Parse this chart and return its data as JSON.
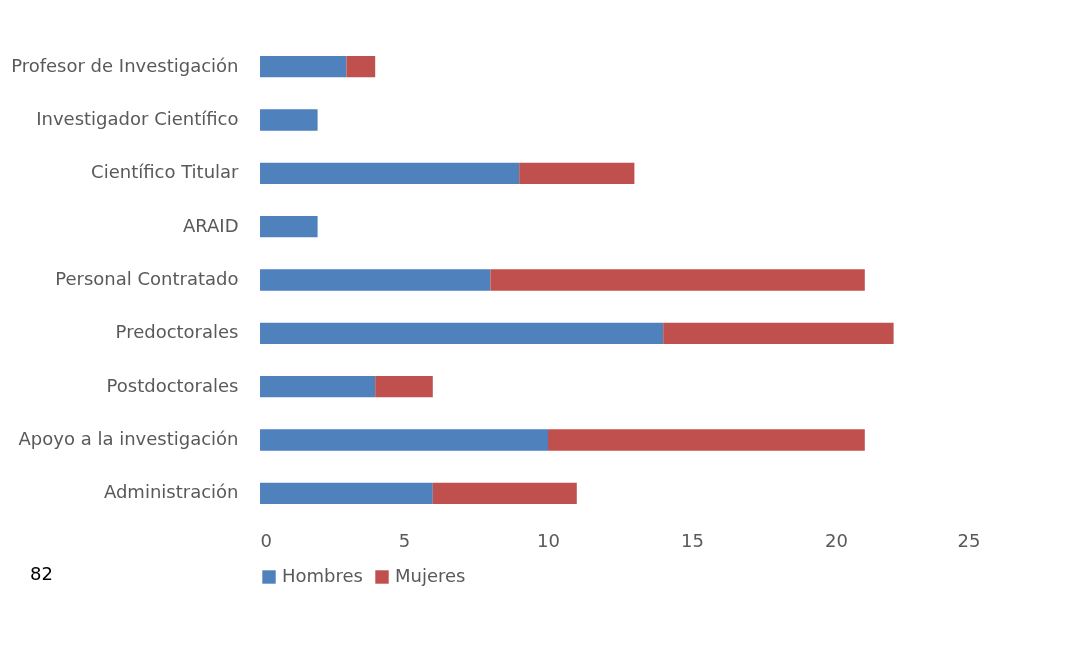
{
  "chart_data": {
    "type": "bar",
    "orientation": "horizontal",
    "stacked": true,
    "categories": [
      "Profesor de Investigación",
      "Investigador Científico",
      "Científico Titular",
      "ARAID",
      "Personal Contratado",
      "Predoctorales",
      "Postdoctorales",
      "Apoyo a la investigación",
      "Administración"
    ],
    "series": [
      {
        "name": "Hombres",
        "color": "#4f81bd",
        "values": [
          3,
          2,
          9,
          2,
          8,
          14,
          4,
          10,
          6
        ]
      },
      {
        "name": "Mujeres",
        "color": "#c0504d",
        "values": [
          1,
          null,
          4,
          null,
          13,
          8,
          2,
          11,
          5
        ]
      }
    ],
    "xlim": [
      0,
      25
    ],
    "xticks": [
      0,
      5,
      10,
      15,
      20,
      25
    ],
    "grid": false,
    "legend": "bottom",
    "annotations": [
      "82"
    ]
  }
}
